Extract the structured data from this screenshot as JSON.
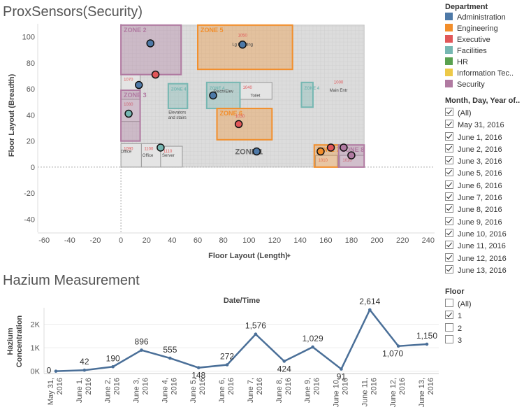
{
  "titles": {
    "main": "ProxSensors(Security)",
    "hazium": "Hazium Measurement"
  },
  "legend": {
    "title": "Department",
    "items": [
      {
        "label": "Administration",
        "color": "#4e79a7"
      },
      {
        "label": "Engineering",
        "color": "#f28e2b"
      },
      {
        "label": "Executive",
        "color": "#e15759"
      },
      {
        "label": "Facilities",
        "color": "#76b7b2"
      },
      {
        "label": "HR",
        "color": "#59a14f"
      },
      {
        "label": "Information Tec..",
        "color": "#edc948"
      },
      {
        "label": "Security",
        "color": "#b07aa1"
      }
    ]
  },
  "date_filter": {
    "title": "Month, Day, Year of..",
    "options": [
      {
        "label": "(All)",
        "checked": true
      },
      {
        "label": "May 31, 2016",
        "checked": true
      },
      {
        "label": "June 1, 2016",
        "checked": true
      },
      {
        "label": "June 2, 2016",
        "checked": true
      },
      {
        "label": "June 3, 2016",
        "checked": true
      },
      {
        "label": "June 5, 2016",
        "checked": true
      },
      {
        "label": "June 6, 2016",
        "checked": true
      },
      {
        "label": "June 7, 2016",
        "checked": true
      },
      {
        "label": "June 8, 2016",
        "checked": true
      },
      {
        "label": "June 9, 2016",
        "checked": true
      },
      {
        "label": "June 10, 2016",
        "checked": true
      },
      {
        "label": "June 11, 2016",
        "checked": true
      },
      {
        "label": "June 12, 2016",
        "checked": true
      },
      {
        "label": "June 13, 2016",
        "checked": true
      }
    ]
  },
  "floor_filter": {
    "title": "Floor",
    "options": [
      {
        "label": "(All)",
        "checked": false
      },
      {
        "label": "1",
        "checked": true
      },
      {
        "label": "2",
        "checked": false
      },
      {
        "label": "3",
        "checked": false
      }
    ]
  },
  "floor_plan": {
    "zones": [
      {
        "label": "ZONE 2",
        "color": "#b07aa1",
        "x0": 0,
        "x1": 47,
        "y0": 71,
        "y1": 109
      },
      {
        "label": "ZONE 5",
        "color": "#f28e2b",
        "x0": 60,
        "x1": 134,
        "y0": 75,
        "y1": 109
      },
      {
        "label": "ZONE 3",
        "color": "#b07aa1",
        "x0": 0,
        "x1": 15,
        "y0": 20,
        "y1": 59
      },
      {
        "label": "ZONE 4",
        "color": "#76b7b2",
        "x0": 37,
        "x1": 52,
        "y0": 45,
        "y1": 64
      },
      {
        "label": "ZONE 4",
        "color": "#76b7b2",
        "x0": 67,
        "x1": 93,
        "y0": 45,
        "y1": 65
      },
      {
        "label": "ZONE 4",
        "color": "#76b7b2",
        "x0": 141,
        "x1": 150,
        "y0": 46,
        "y1": 65
      },
      {
        "label": "ZONE 6",
        "color": "#f28e2b",
        "x0": 75,
        "x1": 118,
        "y0": 21,
        "y1": 45
      },
      {
        "label": "ZONE 7",
        "color": "#f28e2b",
        "x0": 151,
        "x1": 170,
        "y0": 0,
        "y1": 17
      },
      {
        "label": "ZONE 8",
        "color": "#b07aa1",
        "x0": 170,
        "x1": 190,
        "y0": 0,
        "y1": 17
      }
    ],
    "rooms": [
      {
        "label": "1070",
        "x0": 0,
        "x1": 15,
        "y0": 59,
        "y1": 71
      },
      {
        "label": "1080",
        "x0": 0,
        "x1": 15,
        "y0": 35,
        "y1": 52
      },
      {
        "label": "1090",
        "x0": 0,
        "x1": 16,
        "y0": 0,
        "y1": 18
      },
      {
        "label": "1100",
        "x0": 16,
        "x1": 31,
        "y0": 0,
        "y1": 18
      },
      {
        "label": "1110",
        "x0": 31,
        "x1": 48,
        "y0": 0,
        "y1": 16
      },
      {
        "label": "1040",
        "x0": 93,
        "x1": 118,
        "y0": 52,
        "y1": 65
      },
      {
        "label": "1010",
        "x0": 152,
        "x1": 169,
        "y0": 0,
        "y1": 9
      },
      {
        "label": "1020",
        "x0": 171,
        "x1": 190,
        "y0": 0,
        "y1": 9
      }
    ],
    "room_texts": [
      {
        "text": "1050",
        "x": 95,
        "y": 100,
        "color": "#e15759"
      },
      {
        "text": "Lg Meeting",
        "x": 95,
        "y": 93,
        "color": "#444"
      },
      {
        "text": "Elevators",
        "x": 44,
        "y": 41,
        "color": "#444"
      },
      {
        "text": "and stairs",
        "x": 44,
        "y": 37,
        "color": "#444"
      },
      {
        "text": "Stech/Elev",
        "x": 80,
        "y": 57,
        "color": "#444"
      },
      {
        "text": "Toilet",
        "x": 105,
        "y": 54,
        "color": "#444"
      },
      {
        "text": "1030",
        "x": 93,
        "y": 38,
        "color": "#e15759"
      },
      {
        "text": "1000",
        "x": 170,
        "y": 64,
        "color": "#e15759"
      },
      {
        "text": "Main Entr",
        "x": 170,
        "y": 58,
        "color": "#444"
      },
      {
        "text": "Office",
        "x": 4,
        "y": 11,
        "color": "#444"
      },
      {
        "text": "Office",
        "x": 21,
        "y": 8,
        "color": "#444"
      },
      {
        "text": "Server",
        "x": 37,
        "y": 8,
        "color": "#444"
      },
      {
        "text": "ZONE 1",
        "x": 100,
        "y": 10,
        "color": "#666"
      }
    ],
    "points": [
      {
        "x": 23,
        "y": 95,
        "color": "#4e79a7"
      },
      {
        "x": 95,
        "y": 94,
        "color": "#4e79a7"
      },
      {
        "x": 27,
        "y": 71,
        "color": "#e15759"
      },
      {
        "x": 14,
        "y": 63,
        "color": "#4e79a7"
      },
      {
        "x": 72,
        "y": 55,
        "color": "#4e79a7"
      },
      {
        "x": 6,
        "y": 41,
        "color": "#76b7b2"
      },
      {
        "x": 92,
        "y": 33,
        "color": "#e15759"
      },
      {
        "x": 31,
        "y": 15,
        "color": "#76b7b2"
      },
      {
        "x": 106,
        "y": 12,
        "color": "#4e79a7"
      },
      {
        "x": 156,
        "y": 12,
        "color": "#f28e2b"
      },
      {
        "x": 164,
        "y": 15,
        "color": "#e15759"
      },
      {
        "x": 174,
        "y": 15,
        "color": "#b07aa1"
      },
      {
        "x": 180,
        "y": 9,
        "color": "#b07aa1"
      }
    ]
  },
  "chart_data": [
    {
      "type": "scatter",
      "title": "ProxSensors(Security)",
      "xlabel": "Floor Layout (Length)",
      "ylabel": "Floor Layout (Breadth)",
      "xlim": [
        -65,
        245
      ],
      "ylim": [
        -50,
        110
      ],
      "xticks": [
        "-60",
        "-40",
        "-20",
        "0",
        "20",
        "40",
        "60",
        "80",
        "100",
        "120",
        "140",
        "160",
        "180",
        "200",
        "220",
        "240"
      ],
      "yticks": [
        "100",
        "80",
        "60",
        "40",
        "20",
        "0",
        "-20",
        "-40"
      ],
      "grid": false
    },
    {
      "type": "line",
      "title": "Hazium Measurement",
      "header": "Date/Time",
      "ylabel": "Hazium Concentration",
      "yticks": [
        "2K",
        "1K",
        "0K"
      ],
      "ylim": [
        -100,
        2700
      ],
      "categories": [
        "May 31, 2016",
        "June 1, 2016",
        "June 2, 2016",
        "June 3, 2016",
        "June 4, 2016",
        "June 5, 2016",
        "June 6, 2016",
        "June 7, 2016",
        "June 8, 2016",
        "June 9, 2016",
        "June 10, 2016",
        "June 11, 2016",
        "June 12, 2016",
        "June 13, 2016"
      ],
      "series": [
        {
          "values": [
            0,
            42,
            190,
            896,
            555,
            148,
            272,
            1576,
            424,
            1029,
            91,
            2614,
            1070,
            1150
          ],
          "color": "#4a6f98"
        }
      ]
    }
  ]
}
